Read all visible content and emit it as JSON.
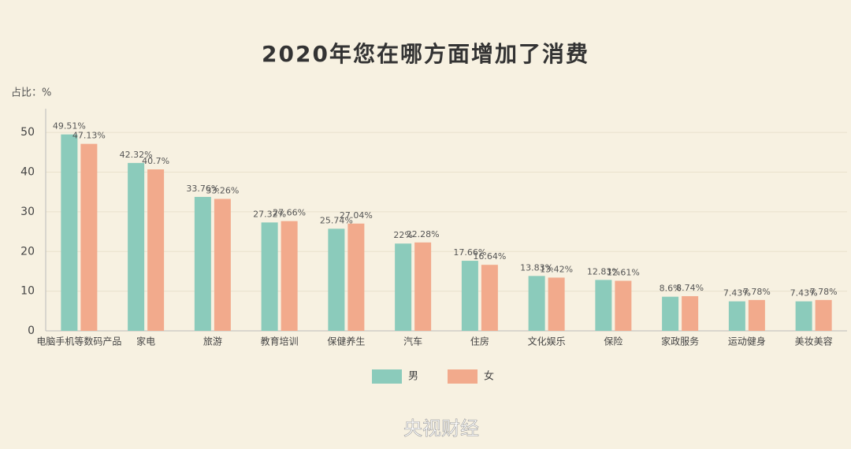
{
  "chart_data": {
    "type": "bar",
    "title": "2020年您在哪方面增加了消费",
    "y_label": "占比：%",
    "categories": [
      "电脑手机等数码产品",
      "家电",
      "旅游",
      "教育培训",
      "保健养生",
      "汽车",
      "住房",
      "文化娱乐",
      "保险",
      "家政服务",
      "运动健身",
      "美妆美容"
    ],
    "series": [
      {
        "name": "男",
        "color": "#8bcbbb",
        "values": [
          49.51,
          42.32,
          33.76,
          27.32,
          25.74,
          22,
          17.66,
          13.83,
          12.83,
          8.6,
          7.43,
          7.43
        ],
        "value_labels": [
          "49.51%",
          "42.32%",
          "33.76%",
          "27.32%",
          "25.74%",
          "22%",
          "17.66%",
          "13.83%",
          "12.83%",
          "8.6%",
          "7.43%",
          "7.43%"
        ]
      },
      {
        "name": "女",
        "color": "#f2aa8c",
        "values": [
          47.13,
          40.7,
          33.26,
          27.66,
          27.04,
          22.28,
          16.64,
          13.42,
          12.61,
          8.74,
          7.78,
          7.78
        ],
        "value_labels": [
          "47.13%",
          "40.7%",
          "33.26%",
          "27.66%",
          "27.04%",
          "22.28%",
          "16.64%",
          "13.42%",
          "12.61%",
          "8.74%",
          "7.78%",
          "7.78%"
        ]
      }
    ],
    "ylim": [
      0,
      55
    ],
    "yticks": [
      0,
      10,
      20,
      30,
      40,
      50
    ],
    "grid": true
  },
  "watermark": "央视财经"
}
